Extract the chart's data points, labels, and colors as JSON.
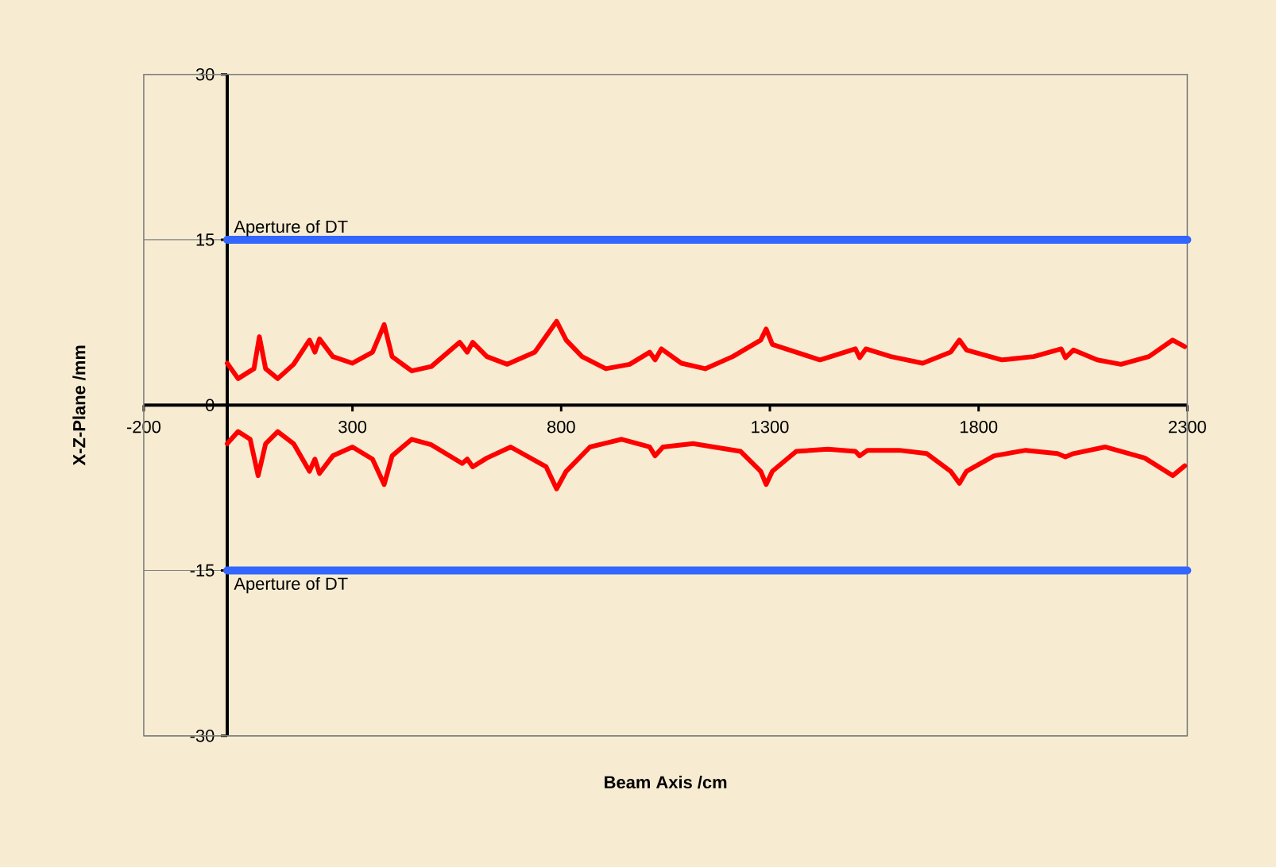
{
  "chart_data": {
    "type": "line",
    "xlabel": "Beam Axis  /cm",
    "ylabel": "X-Z-Plane  /mm",
    "xlim": [
      -200,
      2300
    ],
    "xticks": [
      -200,
      300,
      800,
      1300,
      1800,
      2300
    ],
    "ylim": [
      -30,
      30
    ],
    "yticks": [
      -30,
      -15,
      0,
      15,
      30
    ],
    "grid": "y",
    "marker": "none",
    "line_style": "solid",
    "series": [
      {
        "name": "Aperture of DT",
        "color": "#3366ff",
        "x": [
          0,
          2300
        ],
        "values": [
          15,
          15
        ]
      },
      {
        "name": "Aperture of DT",
        "color": "#3366ff",
        "x": [
          0,
          2300
        ],
        "values": [
          -15,
          -15
        ]
      },
      {
        "color": "#ff0000",
        "x": [
          0,
          26,
          64,
          77,
          92,
          121,
          159,
          197,
          210,
          221,
          253,
          300,
          348,
          376,
          395,
          442,
          489,
          557,
          575,
          588,
          622,
          671,
          737,
          789,
          812,
          850,
          907,
          964,
          1012,
          1025,
          1040,
          1088,
          1145,
          1211,
          1278,
          1291,
          1306,
          1363,
          1420,
          1505,
          1515,
          1530,
          1590,
          1666,
          1733,
          1754,
          1771,
          1856,
          1932,
          1998,
          2008,
          2027,
          2084,
          2141,
          2208,
          2265,
          2294
        ],
        "values": [
          3.8,
          2.4,
          3.3,
          6.2,
          3.3,
          2.4,
          3.7,
          5.9,
          4.8,
          6.0,
          4.4,
          3.8,
          4.8,
          7.3,
          4.4,
          3.1,
          3.5,
          5.7,
          4.8,
          5.7,
          4.4,
          3.7,
          4.8,
          7.6,
          5.9,
          4.4,
          3.3,
          3.7,
          4.8,
          4.1,
          5.1,
          3.8,
          3.3,
          4.4,
          5.9,
          6.9,
          5.5,
          4.8,
          4.1,
          5.1,
          4.3,
          5.1,
          4.4,
          3.8,
          4.8,
          5.9,
          5.0,
          4.1,
          4.4,
          5.1,
          4.3,
          5.0,
          4.1,
          3.7,
          4.4,
          5.9,
          5.3
        ]
      },
      {
        "color": "#ff0000",
        "x": [
          0,
          26,
          55,
          74,
          92,
          121,
          159,
          197,
          210,
          221,
          253,
          300,
          348,
          376,
          395,
          442,
          489,
          563,
          575,
          588,
          622,
          679,
          764,
          789,
          812,
          869,
          945,
          1012,
          1025,
          1044,
          1116,
          1230,
          1278,
          1291,
          1306,
          1363,
          1439,
          1505,
          1515,
          1534,
          1610,
          1676,
          1733,
          1754,
          1771,
          1837,
          1913,
          1989,
          2008,
          2027,
          2103,
          2198,
          2265,
          2294
        ],
        "values": [
          -3.5,
          -2.4,
          -3.1,
          -6.4,
          -3.5,
          -2.4,
          -3.5,
          -6.0,
          -4.9,
          -6.2,
          -4.6,
          -3.8,
          -4.9,
          -7.2,
          -4.6,
          -3.1,
          -3.6,
          -5.3,
          -4.9,
          -5.6,
          -4.8,
          -3.8,
          -5.6,
          -7.6,
          -6.0,
          -3.8,
          -3.1,
          -3.8,
          -4.6,
          -3.8,
          -3.5,
          -4.2,
          -6.0,
          -7.2,
          -6.0,
          -4.2,
          -4.0,
          -4.2,
          -4.6,
          -4.1,
          -4.1,
          -4.4,
          -6.0,
          -7.1,
          -6.0,
          -4.6,
          -4.1,
          -4.4,
          -4.7,
          -4.4,
          -3.8,
          -4.8,
          -6.4,
          -5.5
        ]
      }
    ]
  }
}
